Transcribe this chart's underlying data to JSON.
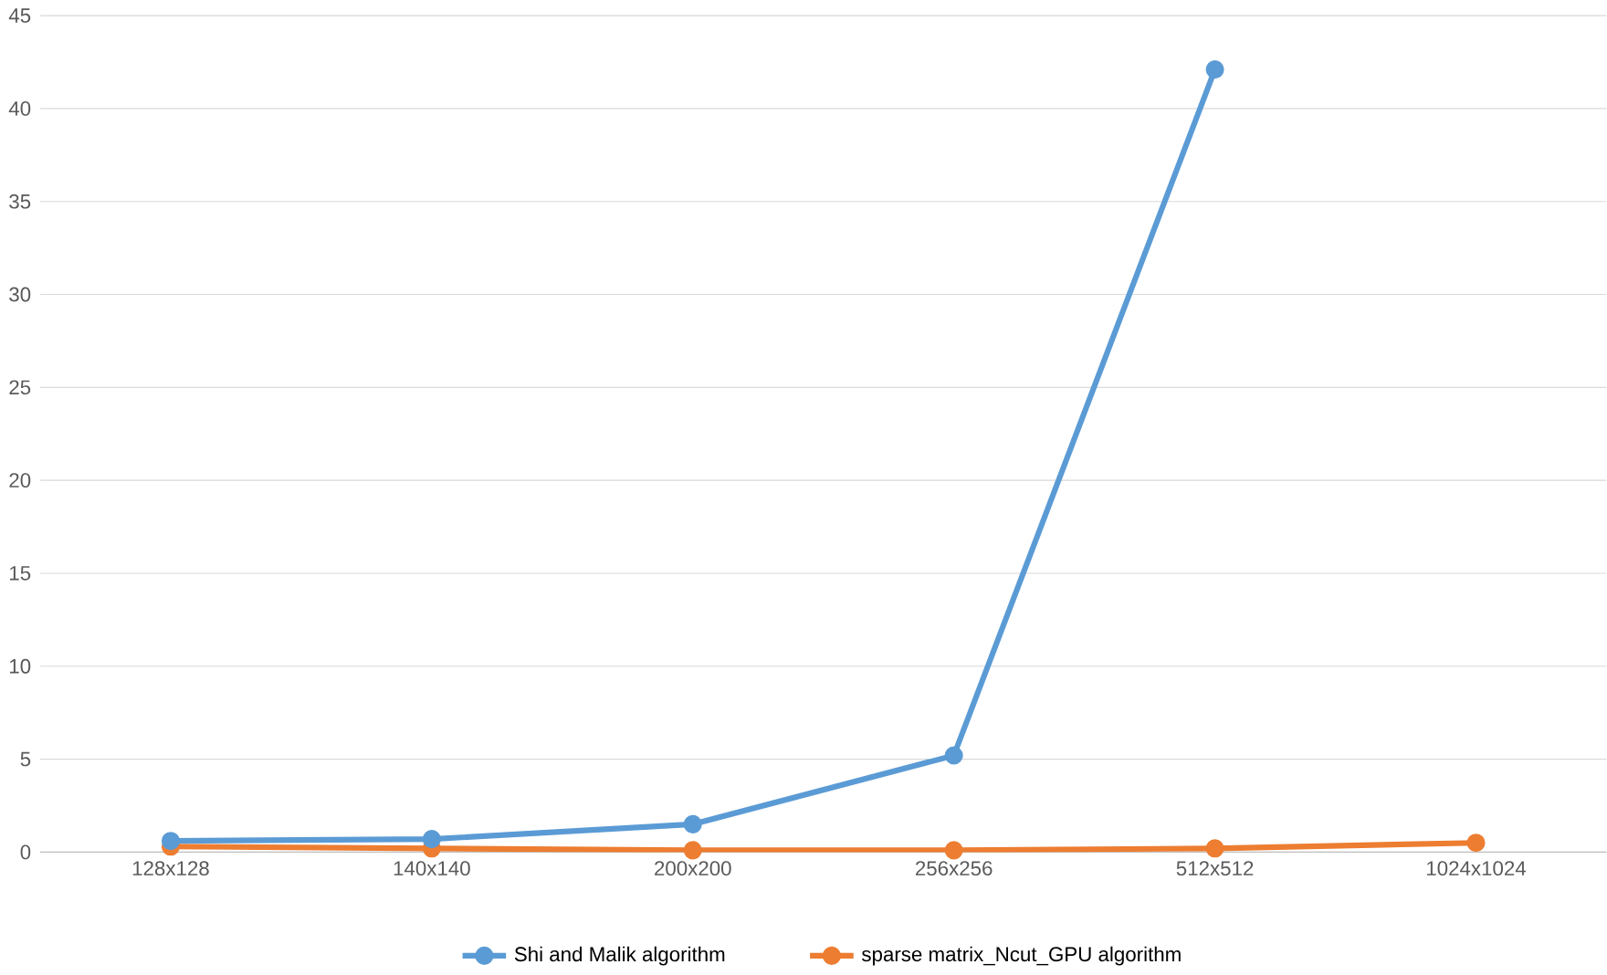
{
  "chart_data": {
    "type": "line",
    "categories": [
      "128x128",
      "140x140",
      "200x200",
      "256x256",
      "512x512",
      "1024x1024"
    ],
    "series": [
      {
        "name": "Shi and Malik algorithm",
        "color": "#5b9bd5",
        "values": [
          0.6,
          0.7,
          1.5,
          5.2,
          42.1,
          null
        ]
      },
      {
        "name": "sparse matrix_Ncut_GPU algorithm",
        "color": "#ed7d31",
        "values": [
          0.3,
          0.2,
          0.1,
          0.1,
          0.2,
          0.5
        ]
      }
    ],
    "ylim": [
      0,
      45
    ],
    "yticks": [
      0,
      5,
      10,
      15,
      20,
      25,
      30,
      35,
      40,
      45
    ],
    "grid": "y",
    "legend": "bottom",
    "marker": "circle",
    "line_style": "solid"
  }
}
